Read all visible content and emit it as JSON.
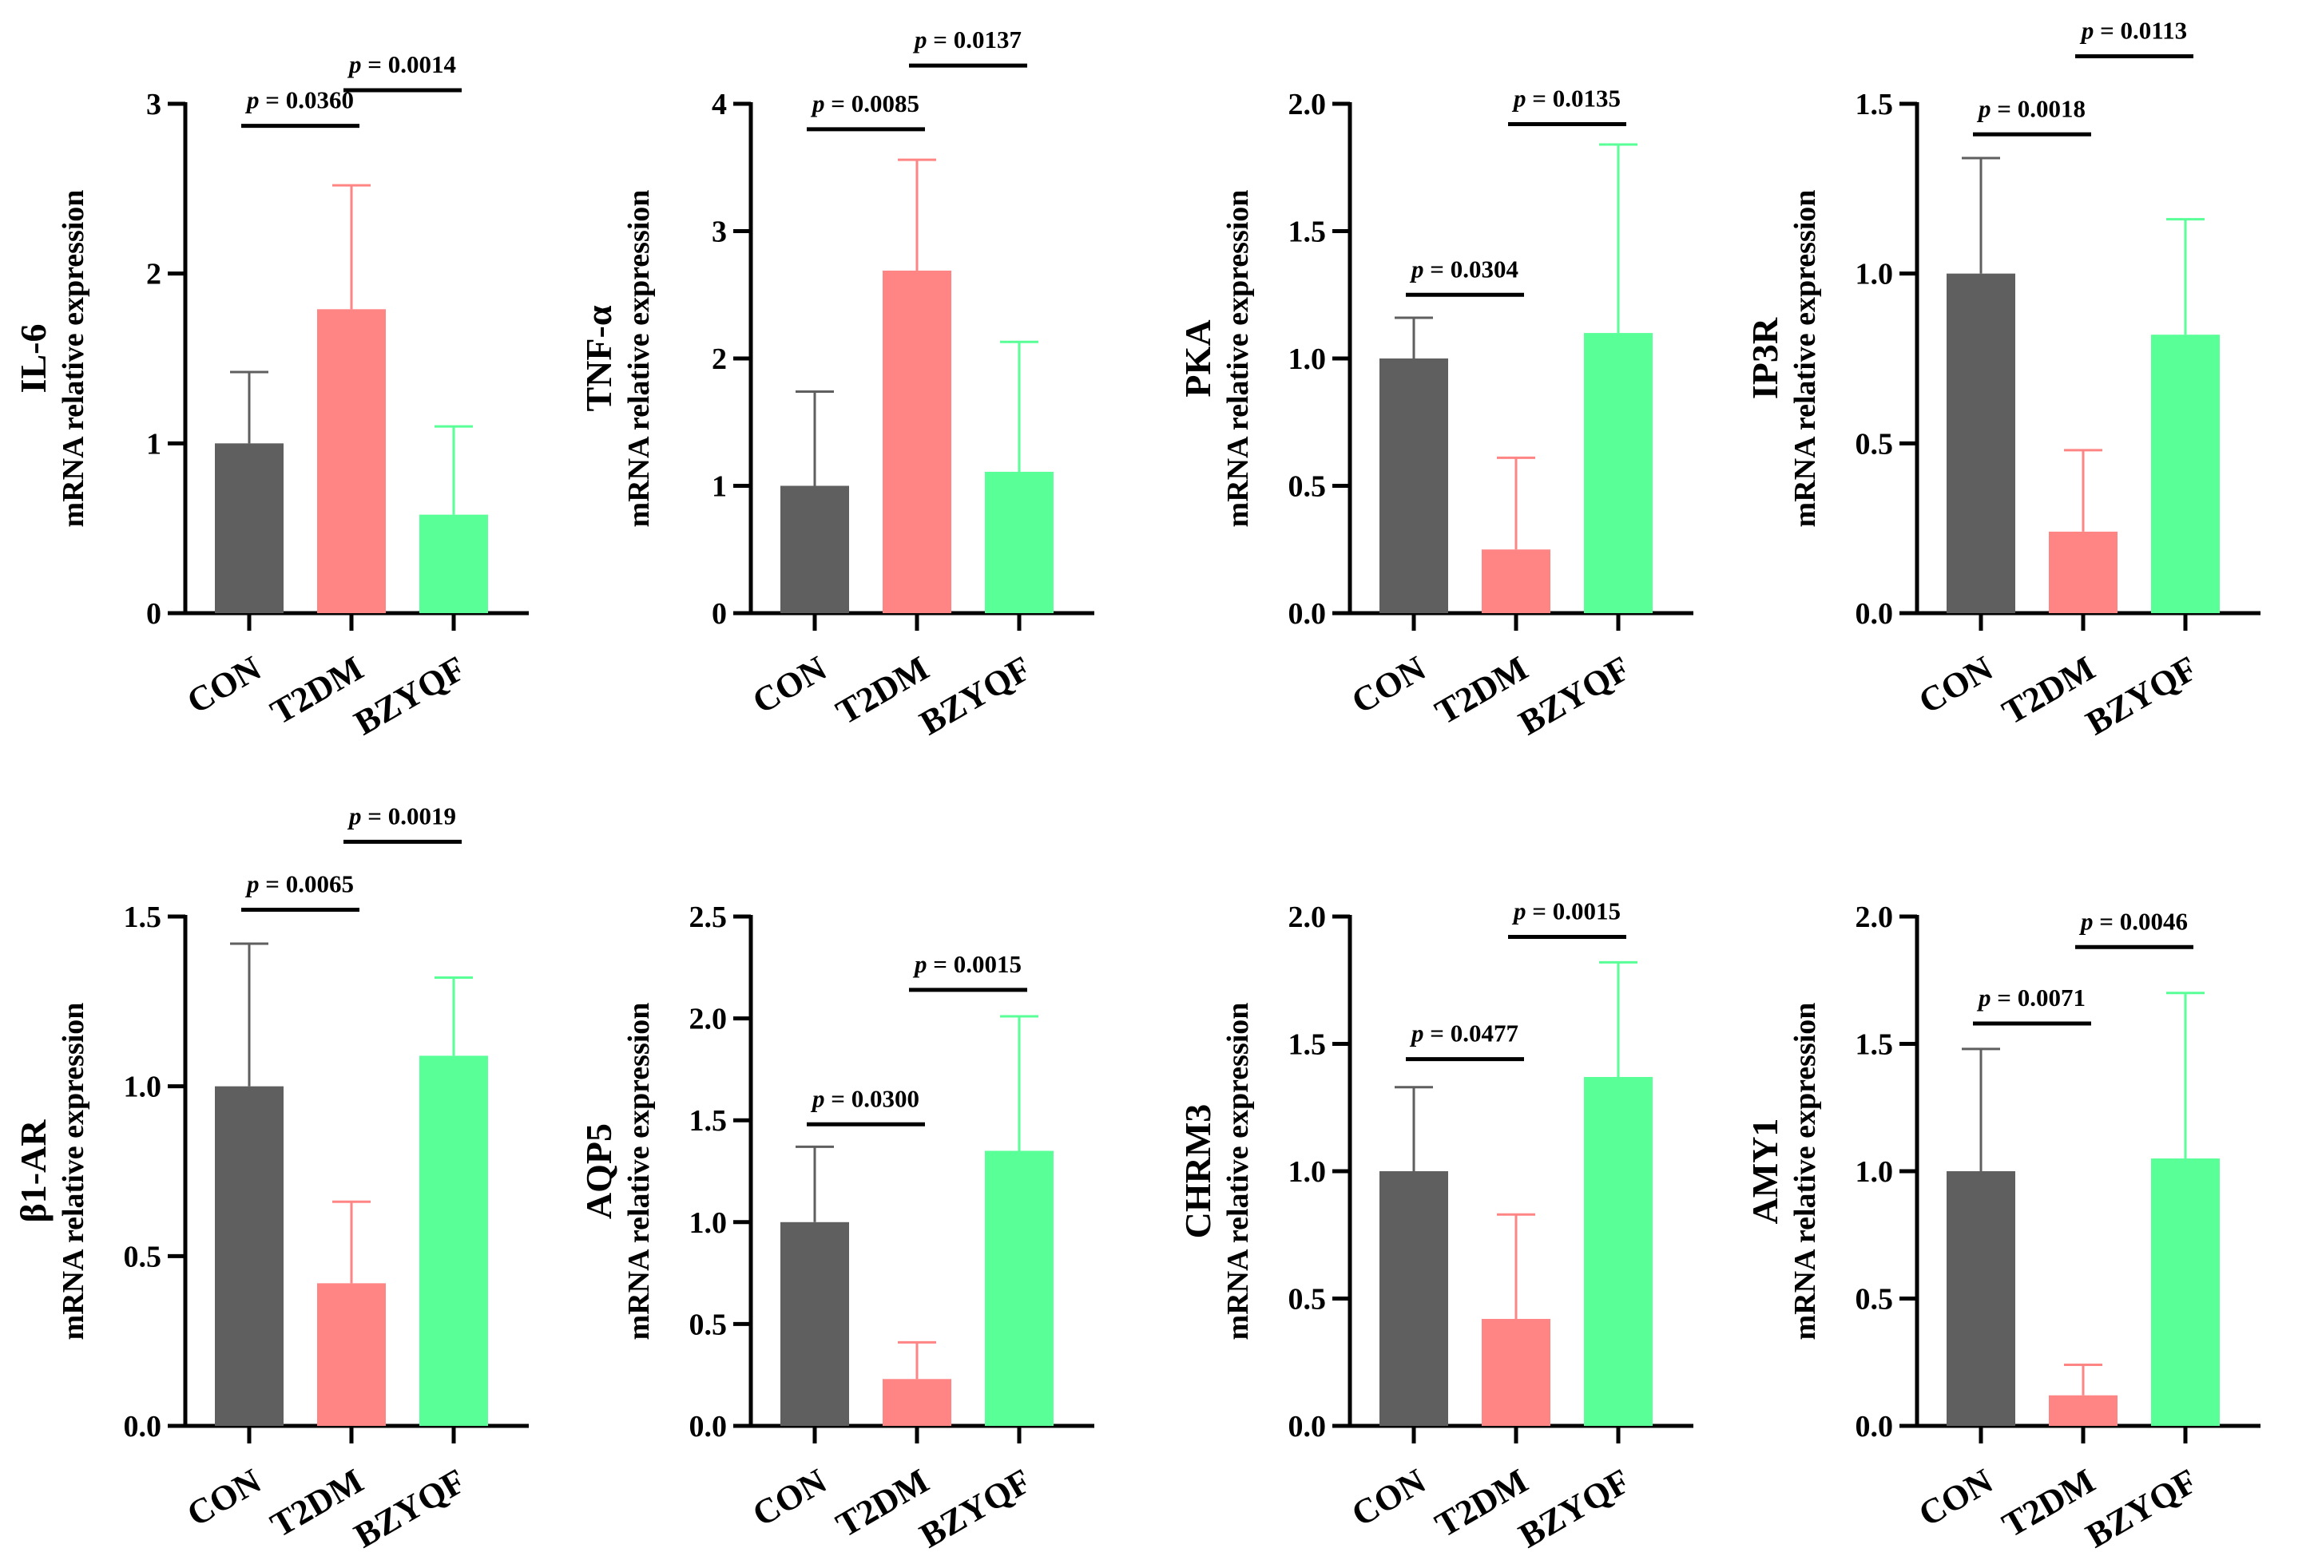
{
  "colors": {
    "CON": "#5f5f5f",
    "T2DM": "#ff8585",
    "BZYQF": "#59ff97",
    "axis": "#000000"
  },
  "chart_data": [
    {
      "type": "bar",
      "gene": "IL-6",
      "ylabel": "mRNA relative expression",
      "categories": [
        "CON",
        "T2DM",
        "BZYQF"
      ],
      "values": [
        1.0,
        1.79,
        0.58
      ],
      "errors": [
        0.42,
        0.73,
        0.52
      ],
      "ylim": [
        0,
        3
      ],
      "yticks": [
        0,
        1,
        2,
        3
      ],
      "tick_labels": [
        "0",
        "1",
        "2",
        "3"
      ],
      "comparisons": [
        {
          "from": 0,
          "to": 1,
          "label": "p = 0.0360",
          "y": 2.87
        },
        {
          "from": 1,
          "to": 2,
          "label": "p = 0.0014",
          "y": 3.08
        }
      ]
    },
    {
      "type": "bar",
      "gene": "TNF-α",
      "ylabel": "mRNA relative expression",
      "categories": [
        "CON",
        "T2DM",
        "BZYQF"
      ],
      "values": [
        1.0,
        2.69,
        1.11
      ],
      "errors": [
        0.74,
        0.87,
        1.02
      ],
      "ylim": [
        0,
        4
      ],
      "yticks": [
        0,
        1,
        2,
        3,
        4
      ],
      "tick_labels": [
        "0",
        "1",
        "2",
        "3",
        "4"
      ],
      "comparisons": [
        {
          "from": 0,
          "to": 1,
          "label": "p = 0.0085",
          "y": 3.8
        },
        {
          "from": 1,
          "to": 2,
          "label": "p = 0.0137",
          "y": 4.3
        }
      ]
    },
    {
      "type": "bar",
      "gene": "PKA",
      "ylabel": "mRNA relative expression",
      "categories": [
        "CON",
        "T2DM",
        "BZYQF"
      ],
      "values": [
        1.0,
        0.25,
        1.1
      ],
      "errors": [
        0.16,
        0.36,
        0.74
      ],
      "ylim": [
        0,
        2
      ],
      "yticks": [
        0,
        0.5,
        1,
        1.5,
        2
      ],
      "tick_labels": [
        "0.0",
        "0.5",
        "1.0",
        "1.5",
        "2.0"
      ],
      "comparisons": [
        {
          "from": 0,
          "to": 1,
          "label": "p = 0.0304",
          "y": 1.25
        },
        {
          "from": 1,
          "to": 2,
          "label": "p = 0.0135",
          "y": 1.92
        }
      ]
    },
    {
      "type": "bar",
      "gene": "IP3R",
      "ylabel": "mRNA relative expression",
      "categories": [
        "CON",
        "T2DM",
        "BZYQF"
      ],
      "values": [
        1.0,
        0.24,
        0.82
      ],
      "errors": [
        0.34,
        0.24,
        0.34
      ],
      "ylim": [
        0,
        1.5
      ],
      "yticks": [
        0,
        0.5,
        1,
        1.5
      ],
      "tick_labels": [
        "0.0",
        "0.5",
        "1.0",
        "1.5"
      ],
      "comparisons": [
        {
          "from": 0,
          "to": 1,
          "label": "p = 0.0018",
          "y": 1.41
        },
        {
          "from": 1,
          "to": 2,
          "label": "p = 0.0113",
          "y": 1.64
        }
      ]
    },
    {
      "type": "bar",
      "gene": "β1-AR",
      "ylabel": "mRNA relative expression",
      "categories": [
        "CON",
        "T2DM",
        "BZYQF"
      ],
      "values": [
        1.0,
        0.42,
        1.09
      ],
      "errors": [
        0.42,
        0.24,
        0.23
      ],
      "ylim": [
        0,
        1.5
      ],
      "yticks": [
        0,
        0.5,
        1,
        1.5
      ],
      "tick_labels": [
        "0.0",
        "0.5",
        "1.0",
        "1.5"
      ],
      "comparisons": [
        {
          "from": 0,
          "to": 1,
          "label": "p = 0.0065",
          "y": 1.52
        },
        {
          "from": 1,
          "to": 2,
          "label": "p = 0.0019",
          "y": 1.72
        }
      ]
    },
    {
      "type": "bar",
      "gene": "AQP5",
      "ylabel": "mRNA relative expression",
      "categories": [
        "CON",
        "T2DM",
        "BZYQF"
      ],
      "values": [
        1.0,
        0.23,
        1.35
      ],
      "errors": [
        0.37,
        0.18,
        0.66
      ],
      "ylim": [
        0,
        2.5
      ],
      "yticks": [
        0,
        0.5,
        1,
        1.5,
        2,
        2.5
      ],
      "tick_labels": [
        "0.0",
        "0.5",
        "1.0",
        "1.5",
        "2.0",
        "2.5"
      ],
      "comparisons": [
        {
          "from": 0,
          "to": 1,
          "label": "p = 0.0300",
          "y": 1.48
        },
        {
          "from": 1,
          "to": 2,
          "label": "p = 0.0015",
          "y": 2.14
        }
      ]
    },
    {
      "type": "bar",
      "gene": "CHRM3",
      "ylabel": "mRNA relative expression",
      "categories": [
        "CON",
        "T2DM",
        "BZYQF"
      ],
      "values": [
        1.0,
        0.42,
        1.37
      ],
      "errors": [
        0.33,
        0.41,
        0.45
      ],
      "ylim": [
        0,
        2
      ],
      "yticks": [
        0,
        0.5,
        1,
        1.5,
        2
      ],
      "tick_labels": [
        "0.0",
        "0.5",
        "1.0",
        "1.5",
        "2.0"
      ],
      "comparisons": [
        {
          "from": 0,
          "to": 1,
          "label": "p = 0.0477",
          "y": 1.44
        },
        {
          "from": 1,
          "to": 2,
          "label": "p = 0.0015",
          "y": 1.92
        }
      ]
    },
    {
      "type": "bar",
      "gene": "AMY1",
      "ylabel": "mRNA relative expression",
      "categories": [
        "CON",
        "T2DM",
        "BZYQF"
      ],
      "values": [
        1.0,
        0.12,
        1.05
      ],
      "errors": [
        0.48,
        0.12,
        0.65
      ],
      "ylim": [
        0,
        2
      ],
      "yticks": [
        0,
        0.5,
        1,
        1.5,
        2
      ],
      "tick_labels": [
        "0.0",
        "0.5",
        "1.0",
        "1.5",
        "2.0"
      ],
      "comparisons": [
        {
          "from": 0,
          "to": 1,
          "label": "p = 0.0071",
          "y": 1.58
        },
        {
          "from": 1,
          "to": 2,
          "label": "p = 0.0046",
          "y": 1.88
        }
      ]
    }
  ]
}
